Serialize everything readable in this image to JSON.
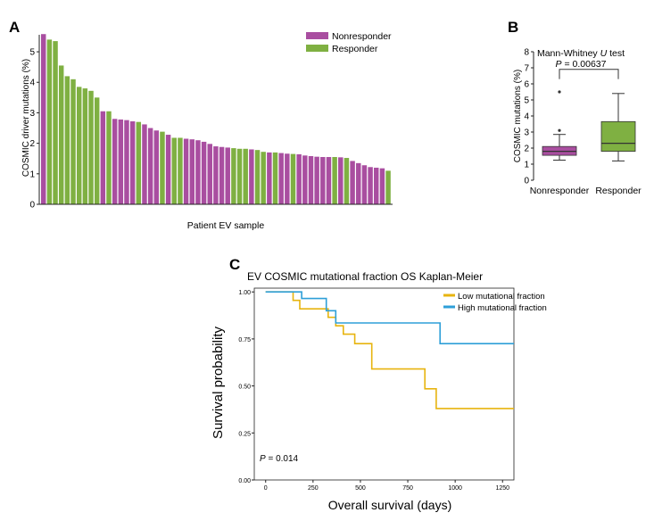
{
  "colors": {
    "nonresponder": "#a94ea0",
    "responder": "#7fb042",
    "low": "#e7b40f",
    "high": "#2e9fd8",
    "axis": "#222222"
  },
  "chart_data": [
    {
      "panel": "A",
      "type": "bar",
      "xlabel": "Patient EV sample",
      "ylabel": "COSMIC driver mutations (%)",
      "ylim": [
        0,
        5.85
      ],
      "yticks": [
        0,
        1,
        2,
        3,
        4,
        5
      ],
      "legend": [
        "Nonresponder",
        "Responder"
      ],
      "legend_position": "top-right",
      "values": [
        5.58,
        5.4,
        5.35,
        4.55,
        4.2,
        4.1,
        3.85,
        3.8,
        3.72,
        3.5,
        3.05,
        3.05,
        2.8,
        2.78,
        2.76,
        2.72,
        2.7,
        2.62,
        2.5,
        2.42,
        2.38,
        2.28,
        2.18,
        2.18,
        2.15,
        2.13,
        2.1,
        2.05,
        1.98,
        1.9,
        1.88,
        1.86,
        1.84,
        1.82,
        1.82,
        1.8,
        1.78,
        1.72,
        1.7,
        1.7,
        1.68,
        1.66,
        1.65,
        1.64,
        1.6,
        1.58,
        1.56,
        1.55,
        1.55,
        1.55,
        1.54,
        1.52,
        1.42,
        1.35,
        1.28,
        1.22,
        1.2,
        1.18,
        1.1
      ],
      "groups": [
        "N",
        "R",
        "R",
        "R",
        "R",
        "R",
        "R",
        "R",
        "R",
        "R",
        "N",
        "R",
        "N",
        "N",
        "N",
        "N",
        "R",
        "N",
        "N",
        "N",
        "R",
        "N",
        "R",
        "R",
        "N",
        "N",
        "N",
        "N",
        "N",
        "N",
        "N",
        "N",
        "R",
        "R",
        "R",
        "N",
        "R",
        "R",
        "N",
        "R",
        "N",
        "N",
        "R",
        "N",
        "N",
        "N",
        "N",
        "N",
        "N",
        "R",
        "N",
        "R",
        "N",
        "N",
        "N",
        "N",
        "N",
        "N",
        "R"
      ]
    },
    {
      "panel": "B",
      "type": "box",
      "title_prefix": "Mann-Whitney ",
      "title_italic": "U",
      "title_suffix": " test",
      "p_label": "P",
      "p_value_text": " = 0.00637",
      "ylabel": "COSMIC mutations (%)",
      "ylim": [
        0,
        8
      ],
      "yticks": [
        0,
        1,
        2,
        3,
        4,
        5,
        6,
        7,
        8
      ],
      "categories": [
        "Nonresponder",
        "Responder"
      ],
      "boxes": [
        {
          "min": 1.25,
          "q1": 1.55,
          "median": 1.8,
          "q3": 2.1,
          "max": 2.85,
          "outliers": [
            3.1,
            5.5
          ]
        },
        {
          "min": 1.2,
          "q1": 1.8,
          "median": 2.3,
          "q3": 3.65,
          "max": 5.4,
          "outliers": []
        }
      ]
    },
    {
      "panel": "C",
      "type": "line",
      "title": "EV COSMIC mutational fraction OS Kaplan-Meier",
      "xlabel": "Overall survival (days)",
      "ylabel": "Survival probability",
      "xlim": [
        -60,
        1310
      ],
      "ylim": [
        0,
        1.02
      ],
      "xticks": [
        0,
        250,
        500,
        750,
        1000,
        1250
      ],
      "yticks": [
        "0.00",
        "0.25",
        "0.50",
        "0.75",
        "1.00"
      ],
      "p_label": "P",
      "p_value_text": " = 0.014",
      "legend_position": "top-right",
      "series": [
        {
          "name": "Low mutational fraction",
          "color_key": "low",
          "times": [
            0,
            145,
            180,
            330,
            370,
            410,
            470,
            560,
            840,
            900,
            1310
          ],
          "surv": [
            1.0,
            0.955,
            0.91,
            0.865,
            0.82,
            0.775,
            0.725,
            0.59,
            0.485,
            0.38,
            0.38
          ]
        },
        {
          "name": "High mutational fraction",
          "color_key": "high",
          "times": [
            0,
            190,
            320,
            370,
            920,
            1310
          ],
          "surv": [
            1.0,
            0.965,
            0.9,
            0.835,
            0.725,
            0.725
          ]
        }
      ]
    }
  ],
  "panel_labels": {
    "a": "A",
    "b": "B",
    "c": "C"
  }
}
